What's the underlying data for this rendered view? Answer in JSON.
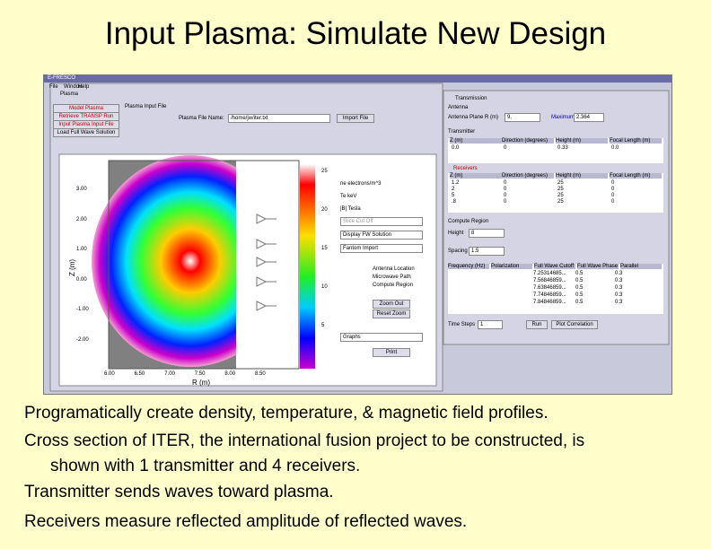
{
  "header": {
    "title": "Input Plasma:  Simulate New Design"
  },
  "app": {
    "window_title": "E-FRESCO",
    "menu": [
      "File",
      "Window",
      "Help"
    ],
    "plasma_panel": {
      "title": "Plasma",
      "buttons": [
        "Model Plasma",
        "Retrieve TRANSP Run",
        "Input Plasma Input File",
        "Load Full Wave Solution"
      ],
      "section": "Plasma Input File",
      "file_label": "Plasma File Name:",
      "file_value": "/home/jw/iter.txt",
      "import_button": "Import File",
      "y_axis_label": "Z (m)",
      "x_axis_label": "R (m)",
      "y_ticks": [
        "3.00",
        "2.00",
        "1.00",
        "0.00",
        "-1.00",
        "-2.00"
      ],
      "x_ticks": [
        "6.00",
        "6.50",
        "7.00",
        "7.50",
        "8.00",
        "8.50"
      ],
      "colorbar_ticks": [
        "25",
        "20",
        "15",
        "10",
        "5"
      ],
      "radios": [
        "ne electrons/m^3",
        "Te keV",
        "|B| Tesla"
      ],
      "dropdowns": [
        "Slice Cut Off",
        "Display FW Solution",
        "Fantom Import"
      ],
      "checkboxes": [
        "Antenna Location",
        "Microwave Path",
        "Compute Region"
      ],
      "zoom_buttons": [
        "Zoom Out",
        "Reset Zoom"
      ],
      "graphs": "Graphs",
      "print": "Print"
    },
    "transmission_panel": {
      "title": "Transmission",
      "antenna": "Antenna",
      "antenna_plane": "Antenna Plane R (m)",
      "antenna_value": "9.",
      "maximum": "Maximum",
      "maximum_value": "2.364",
      "transmitter": "Transmitter",
      "columns": [
        "Z (m)",
        "Direction (degrees)",
        "Height (m)",
        "Focal Length (m)"
      ],
      "transmitter_rows": [
        [
          "0.0",
          "0",
          "0.33",
          "0.0"
        ]
      ],
      "receivers": "Receivers",
      "receiver_rows": [
        [
          "1.2",
          "0",
          "25",
          "0"
        ],
        [
          "2",
          "0",
          "25",
          "0"
        ],
        [
          "5",
          "0",
          "25",
          "0"
        ],
        [
          ".8",
          "0",
          "25",
          "0"
        ]
      ],
      "compute_region": "Compute Region",
      "height": "Height",
      "height_value": "8",
      "spacing": "Spacing",
      "spacing_value": "1.5",
      "frequency_columns": [
        "Frequency (Hz)",
        "Polarization",
        "Full Wave Cutoff",
        "Full Wave Phase",
        "Parallel"
      ],
      "frequency_rows": [
        [
          "7.25314685...",
          "0.5",
          "0.3"
        ],
        [
          "7.56846859...",
          "0.5",
          "0.3"
        ],
        [
          "7.63846859...",
          "0.5",
          "0.3"
        ],
        [
          "7.74846859...",
          "0.5",
          "0.3"
        ],
        [
          "7.84846859...",
          "0.5",
          "0.3"
        ]
      ],
      "time_steps": "Time Steps",
      "time_steps_value": "1",
      "run": "Run",
      "plot_correlation": "Plot Correlation"
    }
  },
  "bullets": [
    "Programatically create density, temperature, & magnetic field profiles.",
    "Cross section of ITER, the international fusion project to be constructed, is",
    "shown with 1 transmitter and 4 receivers.",
    "Transmitter sends waves toward plasma.",
    "Receivers measure reflected amplitude of reflected waves."
  ]
}
